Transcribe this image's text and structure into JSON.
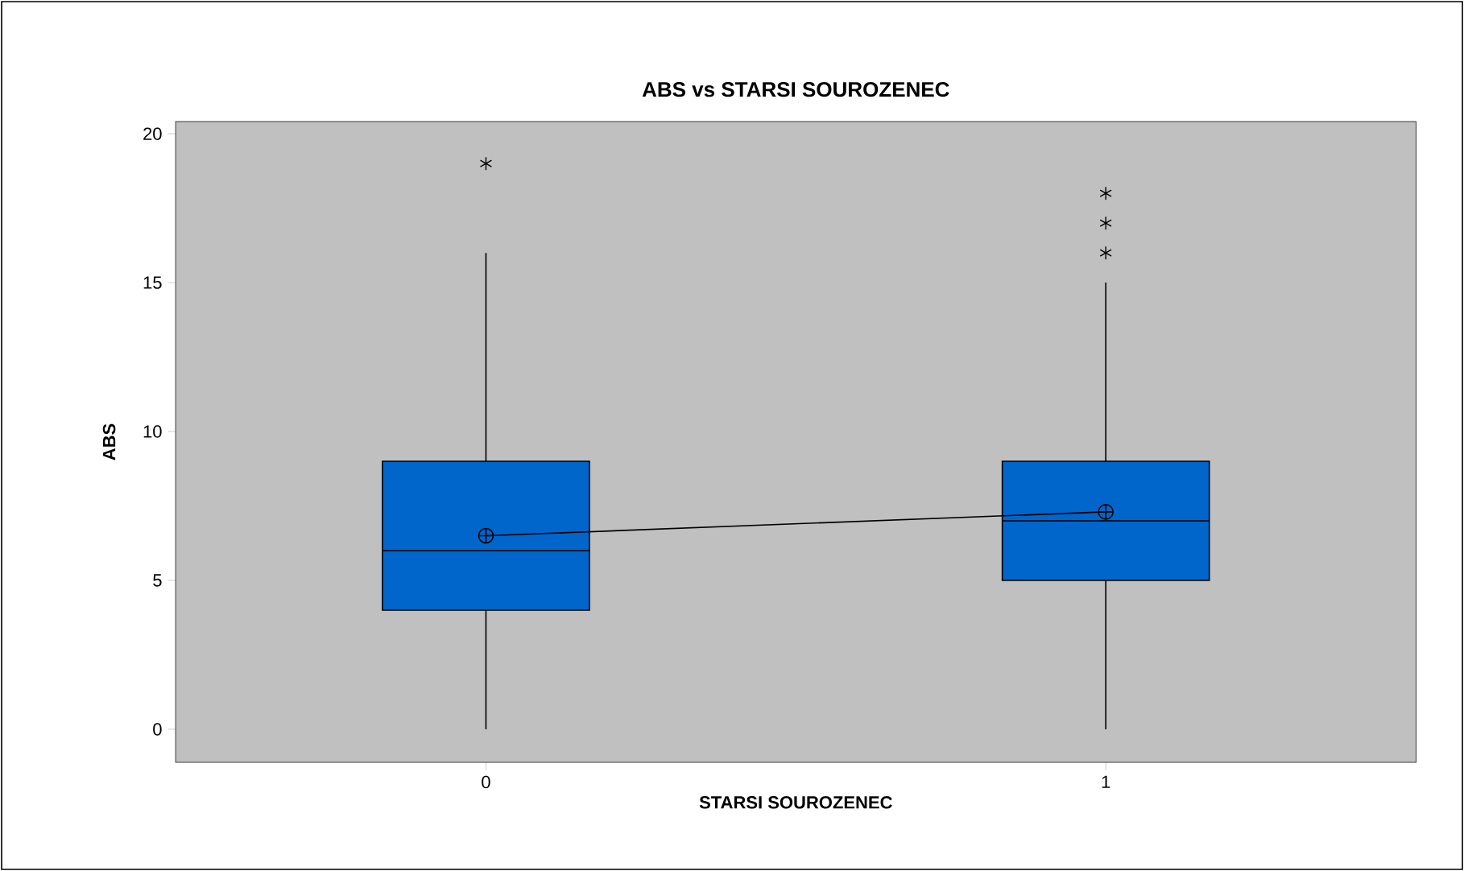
{
  "chart_data": {
    "type": "box",
    "title": "ABS vs STARSI SOUROZENEC",
    "xlabel": "STARSI SOUROZENEC",
    "ylabel": "ABS",
    "categories": [
      "0",
      "1"
    ],
    "series": [
      {
        "color": "#0066cc",
        "boxes": [
          {
            "low": 0,
            "q1": 4,
            "median": 6,
            "q3": 9,
            "high": 16,
            "mean": 6.5,
            "outliers": [
              19
            ]
          },
          {
            "low": 0,
            "q1": 5,
            "median": 7,
            "q3": 9,
            "high": 15,
            "mean": 7.3,
            "outliers": [
              16,
              17,
              18
            ]
          }
        ]
      },
      {
        "type": "line",
        "color": "#000000",
        "values": [
          6.5,
          7.3
        ]
      }
    ],
    "ylim": [
      -1.1,
      20.4
    ],
    "yticks": [
      0,
      5,
      10,
      15,
      20
    ],
    "marker": "none",
    "line_style": "solid"
  }
}
